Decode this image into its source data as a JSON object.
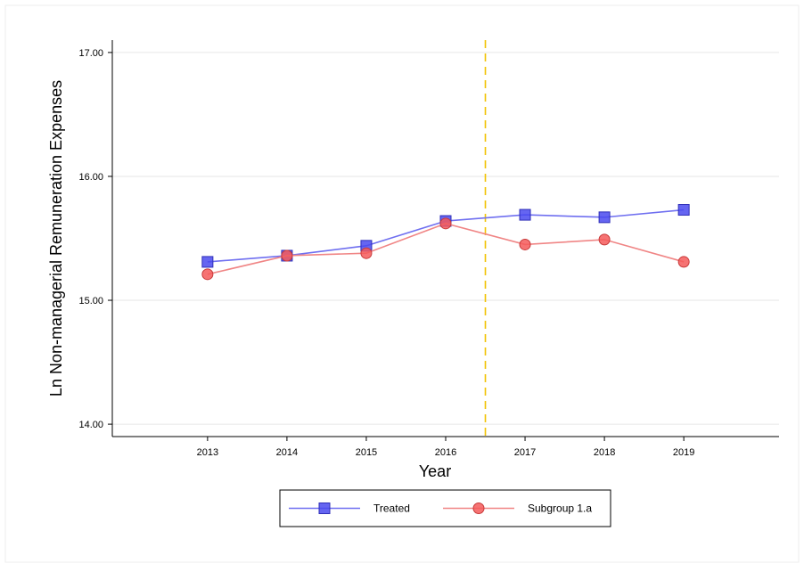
{
  "chart_data": {
    "type": "line",
    "title": "",
    "xlabel": "Year",
    "ylabel": "Ln Non-managerial Remuneration Expenses",
    "categories": [
      "2013",
      "2014",
      "2015",
      "2016",
      "2017",
      "2018",
      "2019"
    ],
    "x": [
      2013,
      2014,
      2015,
      2016,
      2017,
      2018,
      2019
    ],
    "xlim": [
      2011.8,
      2020.2
    ],
    "ylim": [
      13.9,
      17.1
    ],
    "yticks": [
      14.0,
      15.0,
      16.0,
      17.0
    ],
    "ytick_labels": [
      "14.00",
      "15.00",
      "16.00",
      "17.00"
    ],
    "grid": "horizontal",
    "legend_position": "bottom-center",
    "vertical_reference_line": {
      "x": 2016.5,
      "style": "dashed",
      "color": "#f2c200"
    },
    "series": [
      {
        "name": "Treated",
        "marker": "square",
        "line_color": "#6f6ff0",
        "marker_fill": "#4a4aef",
        "values": [
          15.31,
          15.36,
          15.44,
          15.64,
          15.69,
          15.67,
          15.73
        ]
      },
      {
        "name": "Subgroup 1.a",
        "marker": "circle",
        "line_color": "#f08585",
        "marker_fill": "#f45a5a",
        "values": [
          15.21,
          15.36,
          15.38,
          15.62,
          15.45,
          15.49,
          15.31
        ]
      }
    ]
  }
}
